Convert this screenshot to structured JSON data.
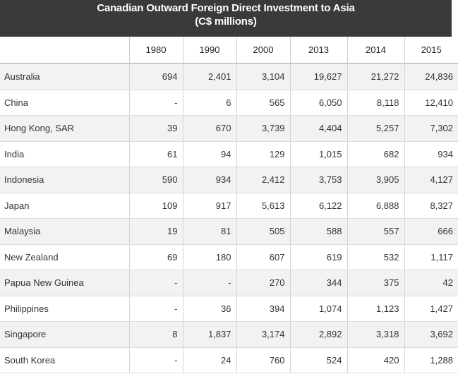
{
  "title": {
    "line1": "Canadian Outward Foreign Direct Investment to Asia",
    "line2": "(C$ millions)"
  },
  "table": {
    "corner": "",
    "columns": [
      "1980",
      "1990",
      "2000",
      "2013",
      "2014",
      "2015"
    ],
    "rows": [
      {
        "country": "Australia",
        "values": [
          "694",
          "2,401",
          "3,104",
          "19,627",
          "21,272",
          "24,836"
        ]
      },
      {
        "country": "China",
        "values": [
          "-",
          "6",
          "565",
          "6,050",
          "8,118",
          "12,410"
        ]
      },
      {
        "country": "Hong Kong, SAR",
        "values": [
          "39",
          "670",
          "3,739",
          "4,404",
          "5,257",
          "7,302"
        ]
      },
      {
        "country": "India",
        "values": [
          "61",
          "94",
          "129",
          "1,015",
          "682",
          "934"
        ]
      },
      {
        "country": "Indonesia",
        "values": [
          "590",
          "934",
          "2,412",
          "3,753",
          "3,905",
          "4,127"
        ]
      },
      {
        "country": "Japan",
        "values": [
          "109",
          "917",
          "5,613",
          "6,122",
          "6,888",
          "8,327"
        ]
      },
      {
        "country": "Malaysia",
        "values": [
          "19",
          "81",
          "505",
          "588",
          "557",
          "666"
        ]
      },
      {
        "country": "New Zealand",
        "values": [
          "69",
          "180",
          "607",
          "619",
          "532",
          "1,117"
        ]
      },
      {
        "country": "Papua New Guinea",
        "values": [
          "-",
          "-",
          "270",
          "344",
          "375",
          "42"
        ]
      },
      {
        "country": "Philippines",
        "values": [
          "-",
          "36",
          "394",
          "1,074",
          "1,123",
          "1,427"
        ]
      },
      {
        "country": "Singapore",
        "values": [
          "8",
          "1,837",
          "3,174",
          "2,892",
          "3,318",
          "3,692"
        ]
      },
      {
        "country": "South Korea",
        "values": [
          "-",
          "24",
          "760",
          "524",
          "420",
          "1,288"
        ]
      }
    ]
  }
}
